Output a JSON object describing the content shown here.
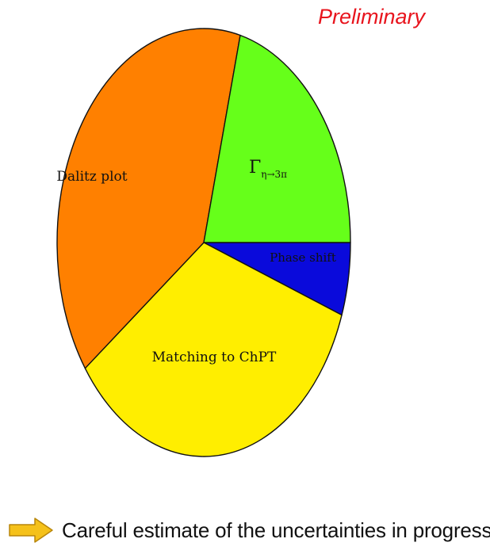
{
  "header": {
    "preliminary_label": "Preliminary",
    "preliminary_color": "#e8141d"
  },
  "chart_data": {
    "type": "pie",
    "title": "",
    "slices": [
      {
        "label": "Γ_{η→3π}",
        "display": {
          "base": "Γ",
          "sub": "η→3π"
        },
        "value": 21.0,
        "color": "#66ff1a"
      },
      {
        "label": "Phase shift",
        "value": 5.5,
        "color": "#0a0adb"
      },
      {
        "label": "Matching to ChPT",
        "value": 34.5,
        "color": "#ffee00"
      },
      {
        "label": "Dalitz plot",
        "value": 39.0,
        "color": "#ff8000"
      }
    ],
    "start": "3 o'clock, counter-clockwise from Phase shift order: Γ slice above horizontal, Phase shift below",
    "edge_color": "#111111"
  },
  "footer": {
    "icon": "right-arrow-icon",
    "arrow_color": "#f5c11a",
    "note": "Careful estimate of the uncertainties in progress"
  }
}
